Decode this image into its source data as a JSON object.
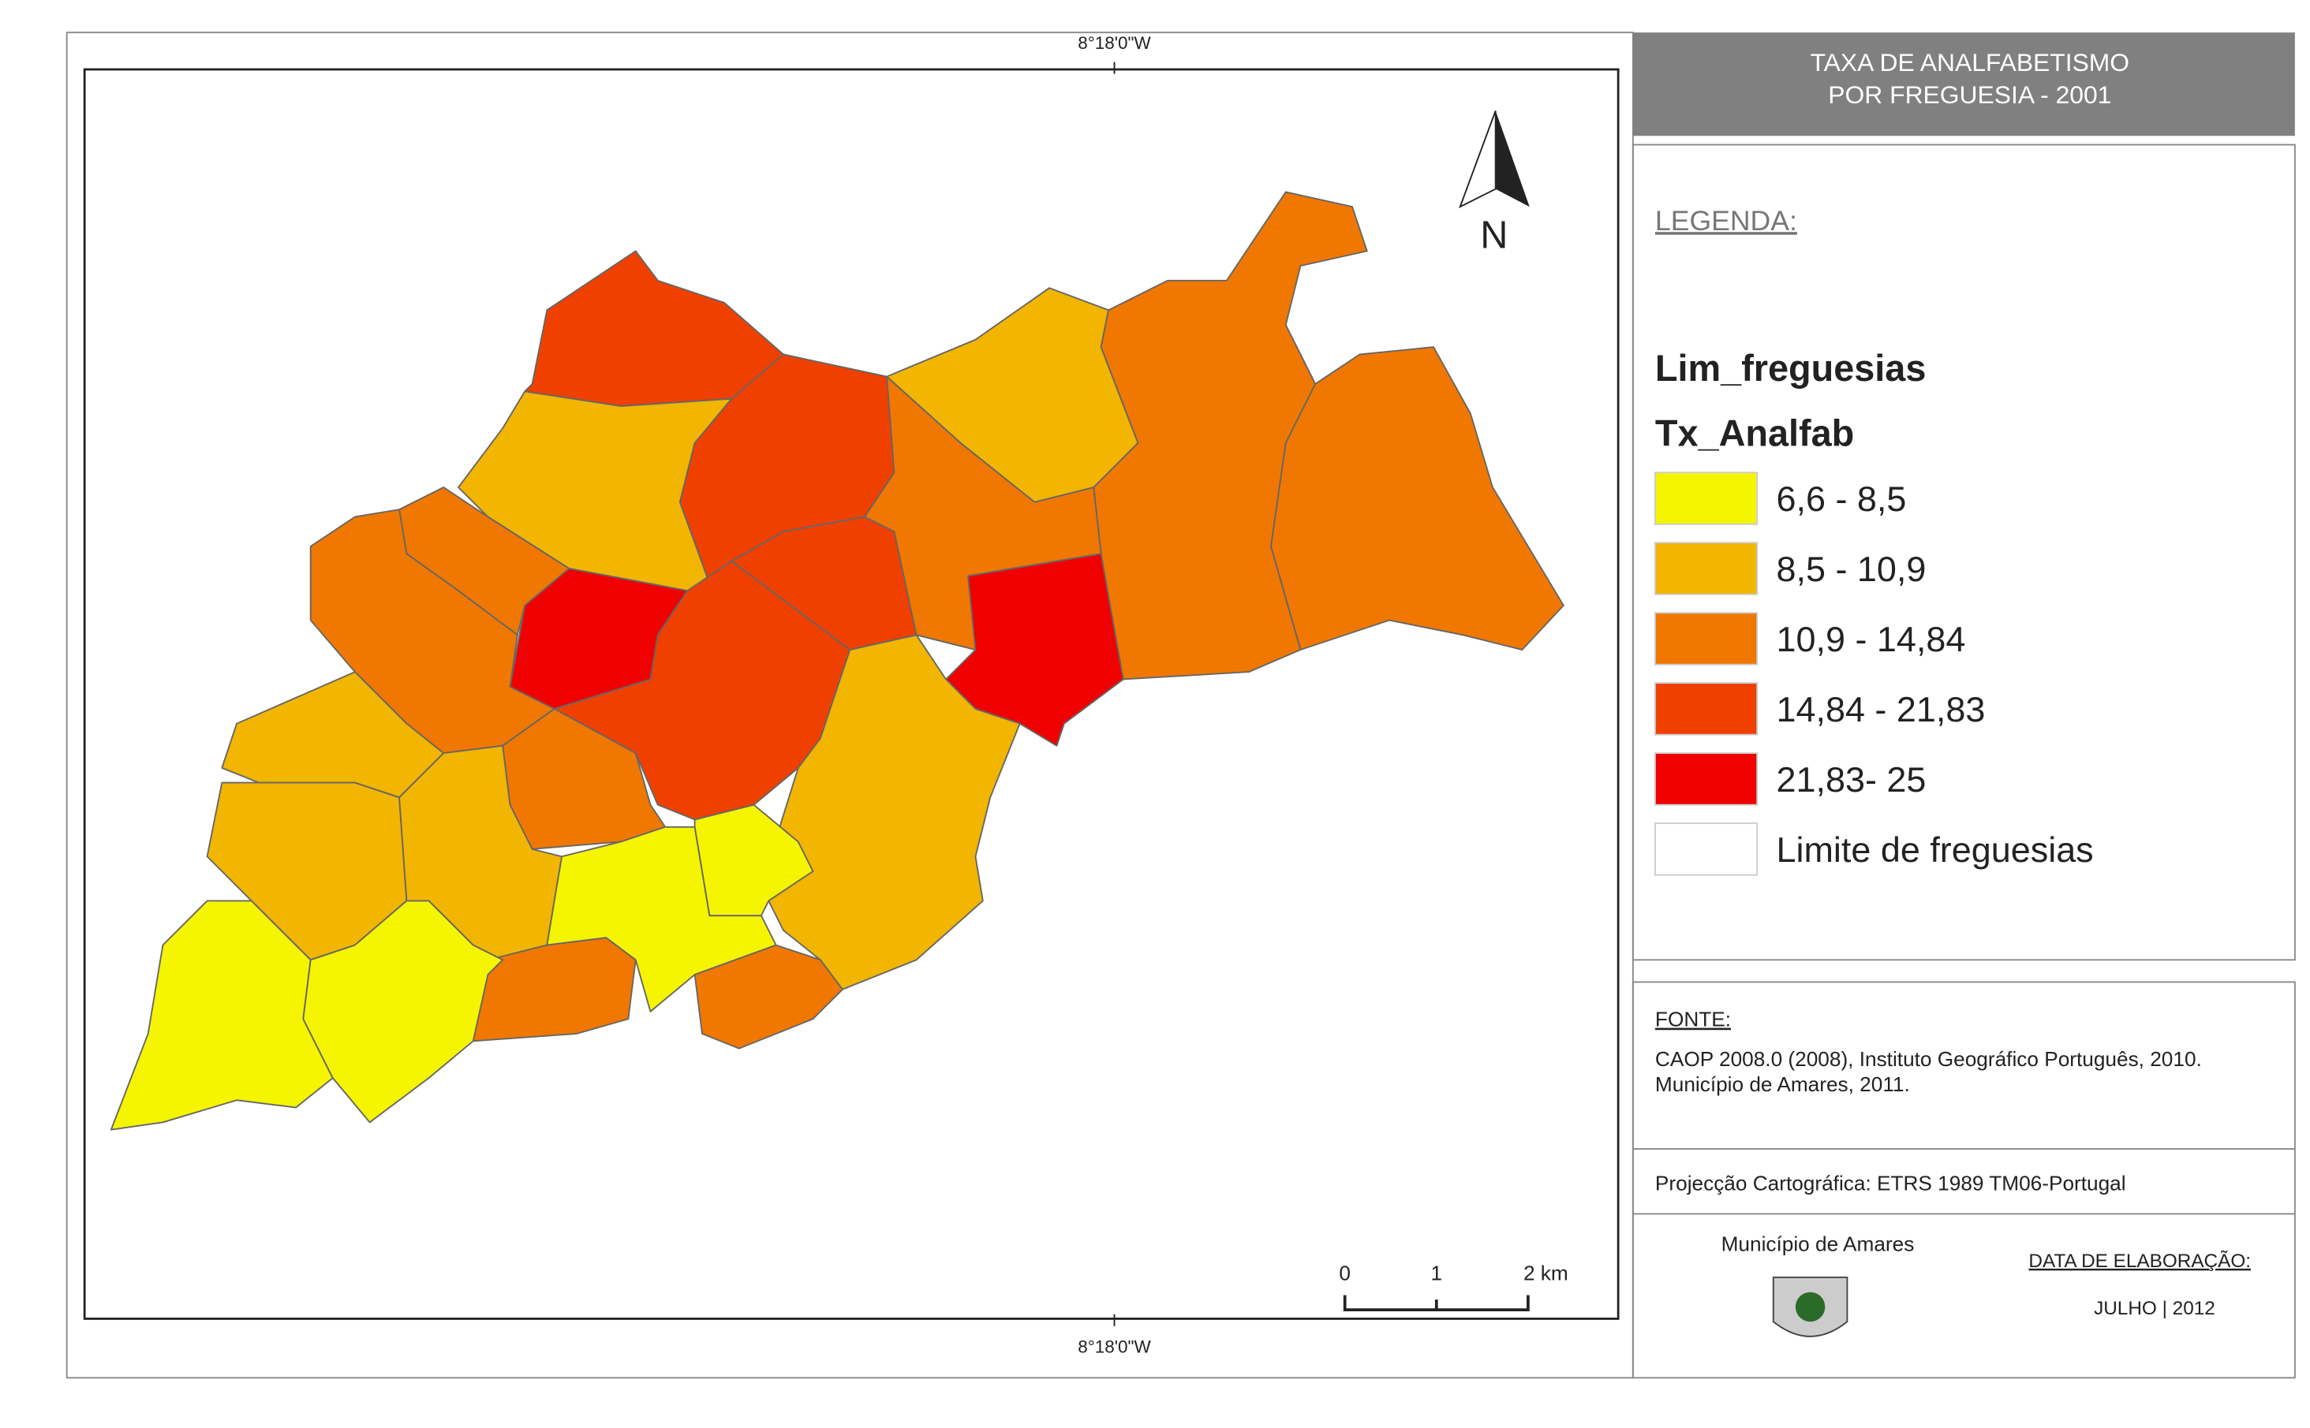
{
  "map": {
    "title_lines": [
      "TAXA DE ANALFABETISMO",
      "POR FREGUESIA - 2001"
    ],
    "coord_top": "8°18'0\"W",
    "coord_bottom": "8°18'0\"W",
    "north": "N",
    "scale_labels": [
      "0",
      "1",
      "2 km"
    ],
    "legend": {
      "heading": "LEGENDA:",
      "layer": "Lim_freguesias",
      "field": "Tx_Analfab",
      "classes": [
        {
          "label": "6,6 - 8,5",
          "color": "#f5f500"
        },
        {
          "label": "8,5 - 10,9",
          "color": "#f2b500"
        },
        {
          "label": "10,9 - 14,84",
          "color": "#f07800"
        },
        {
          "label": "14,84 - 21,83",
          "color": "#f04000"
        },
        {
          "label": "21,83- 25",
          "color": "#f00000"
        },
        {
          "label": "Limite de freguesias",
          "color": "#ffffff"
        }
      ]
    },
    "source": {
      "heading": "FONTE:",
      "lines": [
        "CAOP 2008.0 (2008), Instituto Geográfico Português, 2010.",
        "Município de Amares, 2011."
      ]
    },
    "projection": "Projecção Cartográfica: ETRS 1989 TM06-Portugal",
    "municipality": "Município de Amares",
    "date_heading": "DATA DE ELABORAÇÃO:",
    "date": "JULHO | 2012"
  }
}
